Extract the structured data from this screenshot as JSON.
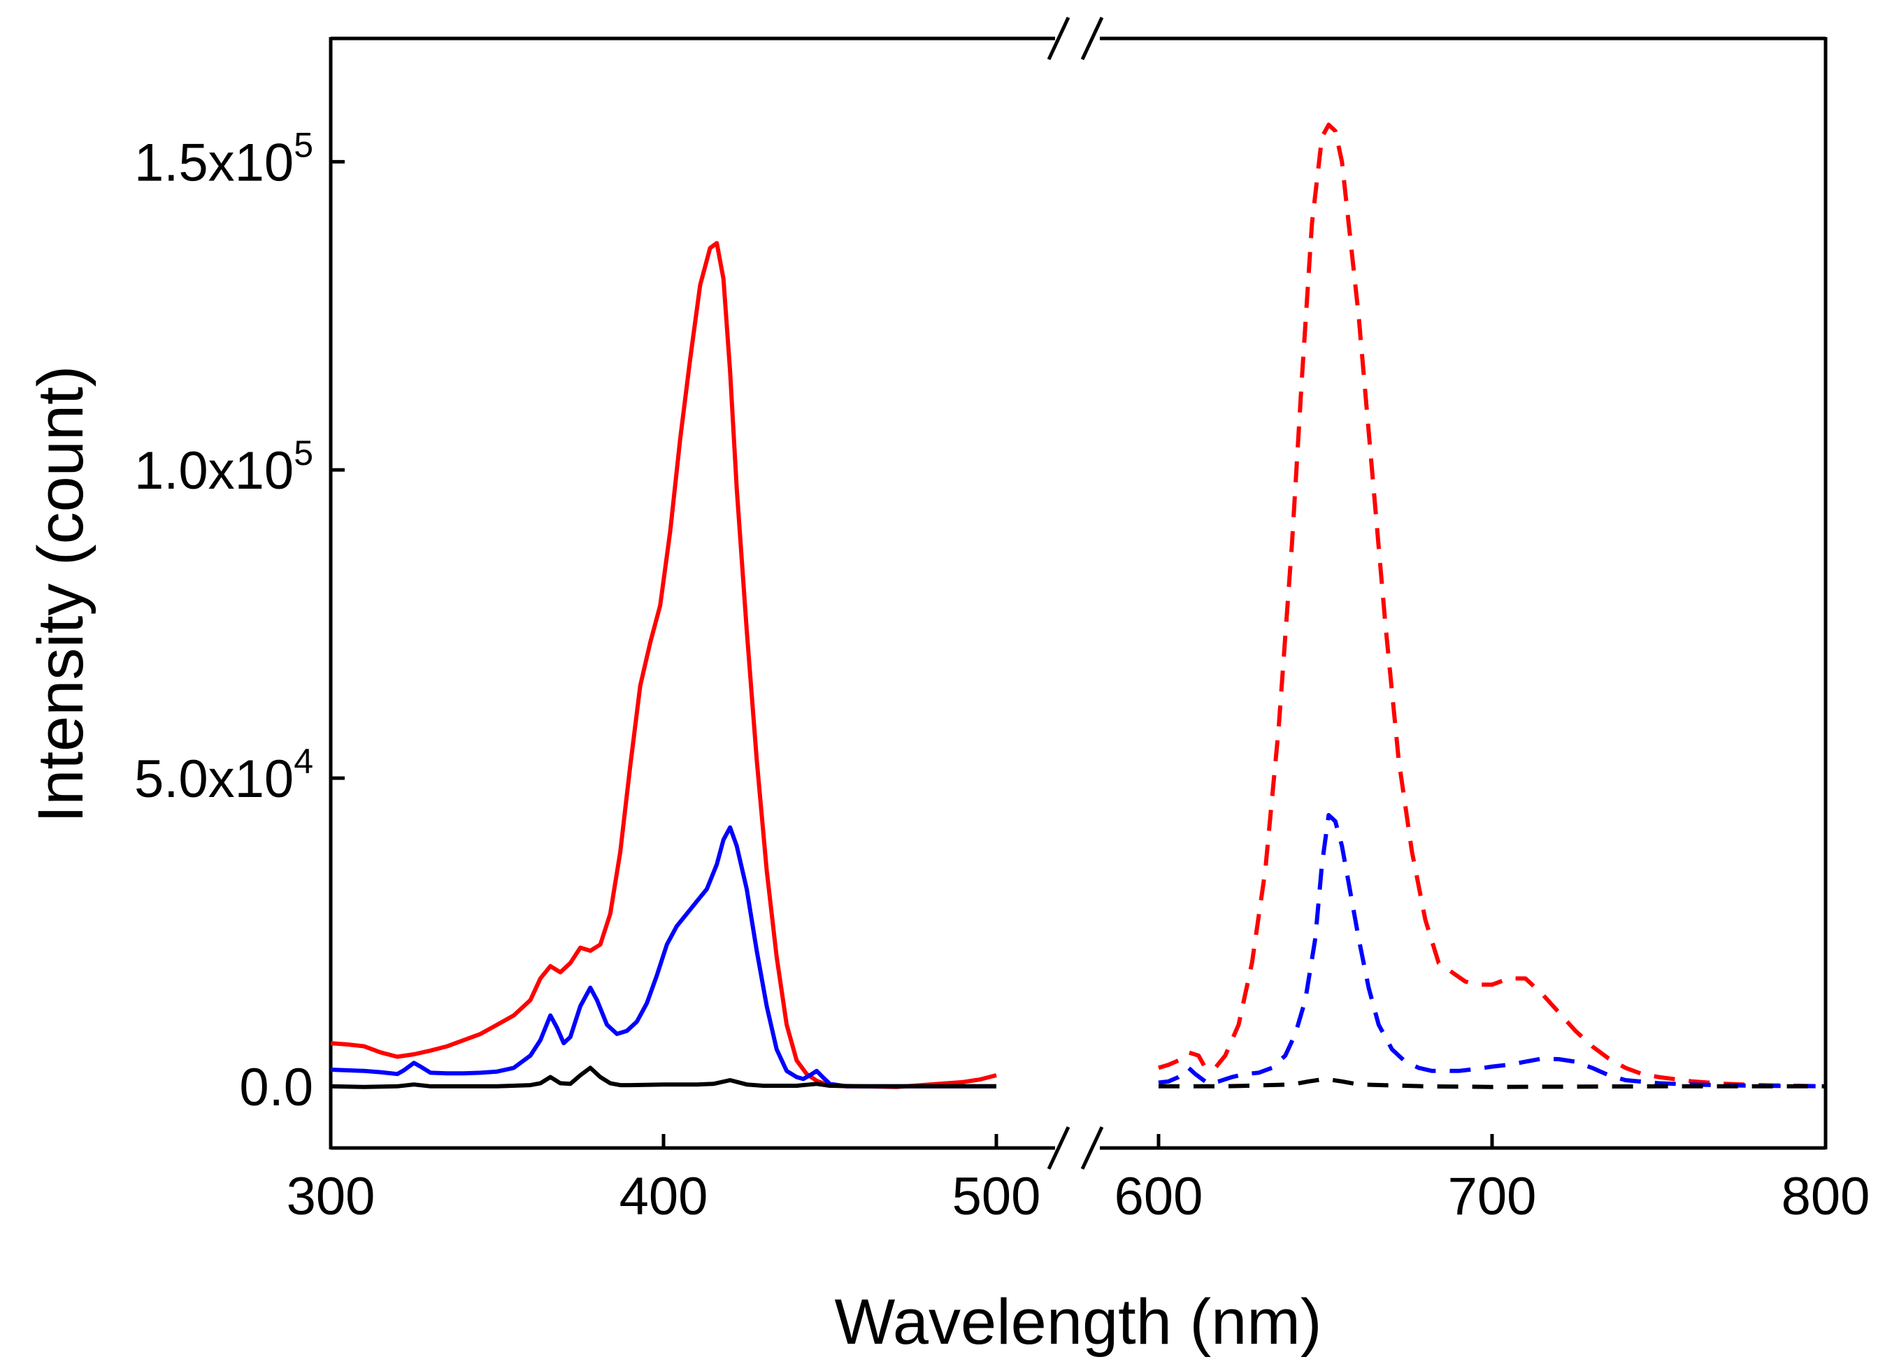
{
  "chart_data": {
    "type": "line",
    "xlabel": "Wavelength (nm)",
    "ylabel": "Intensity (count)",
    "x_axis_break": [
      500,
      600
    ],
    "xlim": [
      300,
      800
    ],
    "ylim": [
      -10000,
      170000
    ],
    "x_ticks": [
      {
        "value": 300,
        "label": "300"
      },
      {
        "value": 400,
        "label": "400"
      },
      {
        "value": 500,
        "label": "500"
      },
      {
        "value": 600,
        "label": "600"
      },
      {
        "value": 700,
        "label": "700"
      },
      {
        "value": 800,
        "label": "800"
      }
    ],
    "y_ticks": [
      {
        "value": 0,
        "mant": "0.0",
        "exp": ""
      },
      {
        "value": 50000,
        "mant": "5.0x10",
        "exp": "4"
      },
      {
        "value": 100000,
        "mant": "1.0x10",
        "exp": "5"
      },
      {
        "value": 150000,
        "mant": "1.5x10",
        "exp": "5"
      }
    ],
    "grid": false,
    "legend": "none",
    "series": [
      {
        "color": "#ff0000",
        "style": "solid",
        "x": [
          300,
          305,
          310,
          315,
          320,
          325,
          330,
          335,
          340,
          345,
          350,
          355,
          360,
          363,
          366,
          369,
          372,
          375,
          378,
          381,
          384,
          387,
          390,
          393,
          396,
          399,
          402,
          405,
          408,
          411,
          414,
          416,
          418,
          420,
          422,
          425,
          428,
          431,
          434,
          437,
          440,
          443,
          446,
          449,
          452,
          455,
          460,
          470,
          480,
          490,
          495,
          500
        ],
        "y": [
          7000,
          6800,
          6500,
          5500,
          4800,
          5200,
          5800,
          6500,
          7500,
          8500,
          10000,
          11500,
          14000,
          17500,
          19500,
          18500,
          20000,
          22500,
          22000,
          23000,
          28000,
          38000,
          52000,
          65000,
          72000,
          78000,
          90000,
          105000,
          118000,
          130000,
          136000,
          136800,
          131000,
          116000,
          97000,
          74000,
          53000,
          35000,
          21000,
          10000,
          4200,
          2000,
          900,
          300,
          100,
          0,
          0,
          -100,
          300,
          700,
          1100,
          1800
        ]
      },
      {
        "color": "#0000ff",
        "style": "solid",
        "x": [
          300,
          305,
          310,
          315,
          320,
          322,
          325,
          327,
          330,
          335,
          340,
          345,
          350,
          355,
          360,
          363,
          366,
          368,
          370,
          372,
          375,
          378,
          380,
          383,
          386,
          389,
          392,
          395,
          398,
          401,
          404,
          407,
          410,
          413,
          416,
          418,
          420,
          422,
          425,
          428,
          431,
          434,
          437,
          440,
          442,
          444,
          446,
          448,
          450,
          455,
          460,
          470,
          480,
          490,
          500
        ],
        "y": [
          2700,
          2600,
          2500,
          2300,
          2000,
          2600,
          3800,
          3200,
          2200,
          2100,
          2100,
          2200,
          2400,
          3000,
          5000,
          7500,
          11500,
          9500,
          7000,
          8000,
          13000,
          16000,
          14000,
          10000,
          8500,
          9000,
          10500,
          13500,
          18000,
          23000,
          26000,
          28000,
          30000,
          32000,
          36000,
          40000,
          42000,
          39000,
          32000,
          22000,
          13000,
          6000,
          2500,
          1500,
          1200,
          1800,
          2500,
          1400,
          400,
          0,
          0,
          0,
          0,
          0,
          0
        ]
      },
      {
        "color": "#000000",
        "style": "solid",
        "x": [
          300,
          310,
          320,
          325,
          330,
          340,
          350,
          360,
          363,
          366,
          369,
          372,
          375,
          378,
          381,
          384,
          387,
          390,
          400,
          410,
          415,
          420,
          425,
          430,
          440,
          446,
          450,
          460,
          480,
          500
        ],
        "y": [
          0,
          -100,
          0,
          300,
          0,
          0,
          0,
          200,
          500,
          1500,
          500,
          400,
          1800,
          3000,
          1500,
          500,
          200,
          200,
          300,
          300,
          400,
          1000,
          300,
          100,
          100,
          400,
          100,
          0,
          0,
          0
        ]
      },
      {
        "color": "#ff0000",
        "style": "dashed",
        "x": [
          600,
          603,
          606,
          609,
          612,
          614,
          617,
          620,
          624,
          628,
          632,
          636,
          640,
          643,
          646,
          649,
          651,
          653,
          655,
          657,
          660,
          664,
          668,
          672,
          676,
          680,
          684,
          688,
          692,
          696,
          700,
          705,
          710,
          715,
          720,
          725,
          730,
          735,
          740,
          745,
          750,
          760,
          770,
          780,
          790,
          800
        ],
        "y": [
          3000,
          3500,
          4200,
          5500,
          5000,
          3000,
          3000,
          5000,
          10000,
          20000,
          35000,
          58000,
          88000,
          115000,
          140000,
          154000,
          156000,
          155000,
          150000,
          140000,
          125000,
          100000,
          75000,
          53000,
          38000,
          27000,
          20000,
          18500,
          17000,
          16500,
          16500,
          17500,
          17500,
          15000,
          12000,
          9000,
          6500,
          4500,
          3000,
          2000,
          1500,
          800,
          400,
          200,
          100,
          0
        ]
      },
      {
        "color": "#0000ff",
        "style": "dashed",
        "x": [
          600,
          603,
          606,
          609,
          611,
          613,
          615,
          618,
          622,
          626,
          630,
          634,
          638,
          641,
          644,
          647,
          649,
          651,
          653,
          655,
          657,
          660,
          663,
          666,
          670,
          674,
          678,
          682,
          686,
          690,
          695,
          700,
          705,
          710,
          715,
          720,
          725,
          730,
          735,
          740,
          750,
          760,
          770,
          780,
          790,
          800
        ],
        "y": [
          600,
          800,
          1500,
          3000,
          2000,
          1200,
          400,
          800,
          1500,
          2000,
          2200,
          3000,
          5000,
          8500,
          14000,
          24000,
          36000,
          44000,
          43000,
          39000,
          33000,
          24000,
          16000,
          10000,
          6000,
          4000,
          3000,
          2500,
          2500,
          2500,
          2800,
          3200,
          3500,
          4000,
          4500,
          4400,
          4000,
          3000,
          1800,
          1000,
          500,
          300,
          150,
          100,
          50,
          0
        ]
      },
      {
        "color": "#000000",
        "style": "dashed",
        "x": [
          600,
          620,
          640,
          645,
          650,
          655,
          660,
          680,
          700,
          750,
          800
        ],
        "y": [
          0,
          0,
          300,
          800,
          1200,
          800,
          300,
          0,
          -100,
          0,
          0
        ]
      }
    ]
  }
}
